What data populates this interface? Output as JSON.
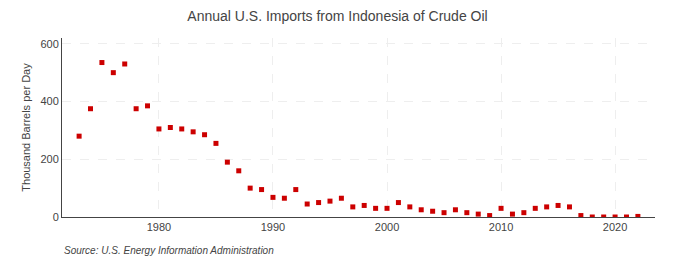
{
  "chart_data": {
    "type": "scatter",
    "title": "Annual U.S. Imports from Indonesia of Crude Oil",
    "ylabel": "Thousand Barrels per Day",
    "annotations": [
      "Source: U.S. Energy Information Administration"
    ],
    "x": [
      1973,
      1974,
      1975,
      1976,
      1977,
      1978,
      1979,
      1980,
      1981,
      1982,
      1983,
      1984,
      1985,
      1986,
      1987,
      1988,
      1989,
      1990,
      1991,
      1992,
      1993,
      1994,
      1995,
      1996,
      1997,
      1998,
      1999,
      2000,
      2001,
      2002,
      2003,
      2004,
      2005,
      2006,
      2007,
      2008,
      2009,
      2010,
      2011,
      2012,
      2013,
      2014,
      2015,
      2016,
      2017,
      2018,
      2019,
      2020,
      2021,
      2022
    ],
    "values": [
      280,
      375,
      535,
      500,
      530,
      375,
      385,
      305,
      310,
      305,
      295,
      285,
      255,
      190,
      160,
      100,
      95,
      68,
      65,
      95,
      45,
      50,
      55,
      65,
      35,
      40,
      30,
      30,
      50,
      35,
      25,
      20,
      15,
      25,
      15,
      10,
      5,
      30,
      10,
      15,
      30,
      35,
      40,
      35,
      5,
      0,
      0,
      0,
      0,
      2
    ],
    "color": "#cc0000",
    "marker": "square",
    "xlim": [
      1971.5,
      2023.5
    ],
    "xticks": [
      1980,
      1990,
      2000,
      2010,
      2020
    ],
    "ylim": [
      0,
      620
    ],
    "yticks": [
      0,
      200,
      400,
      600
    ],
    "grid": true
  }
}
